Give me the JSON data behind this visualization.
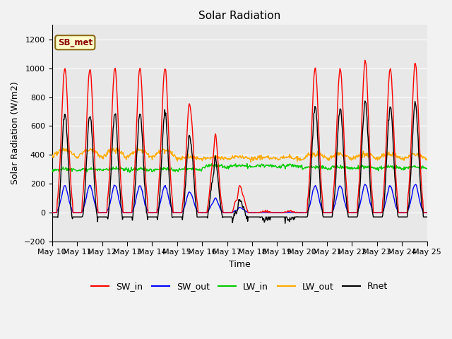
{
  "title": "Solar Radiation",
  "xlabel": "Time",
  "ylabel": "Solar Radiation (W/m2)",
  "ylim": [
    -200,
    1300
  ],
  "yticks": [
    -200,
    0,
    200,
    400,
    600,
    800,
    1000,
    1200
  ],
  "xtick_labels": [
    "May 10",
    "May 11",
    "May 12",
    "May 13",
    "May 14",
    "May 15",
    "May 16",
    "May 17",
    "May 18",
    "May 19",
    "May 20",
    "May 21",
    "May 22",
    "May 23",
    "May 24",
    "May 25"
  ],
  "colors": {
    "SW_in": "#ff0000",
    "SW_out": "#0000ff",
    "LW_in": "#00cc00",
    "LW_out": "#ffaa00",
    "Rnet": "#000000"
  },
  "legend_label": "SB_met",
  "background_color": "#e8e8e8",
  "plot_bg_color": "#dcdcdc",
  "grid_color": "#ffffff",
  "n_days": 15,
  "dt_hours": 0.5,
  "figsize": [
    6.4,
    4.8
  ],
  "dpi": 100
}
